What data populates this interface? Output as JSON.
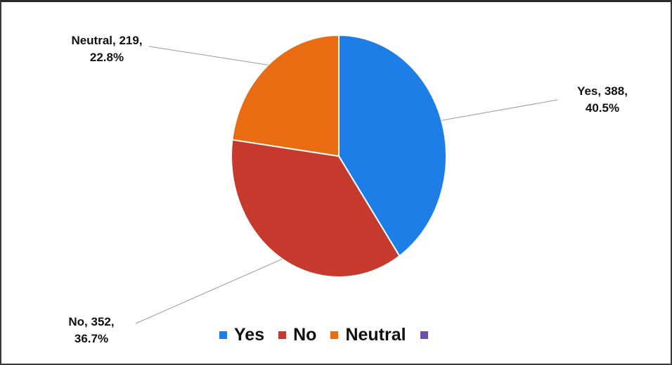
{
  "chart_data": {
    "type": "pie",
    "title": "",
    "slices": [
      {
        "label": "Yes",
        "value": 388,
        "percent": "40.5%",
        "color": "#1e7ee8"
      },
      {
        "label": "No",
        "value": 352,
        "percent": "36.7%",
        "color": "#c63a2e"
      },
      {
        "label": "Neutral",
        "value": 219,
        "percent": "22.8%",
        "color": "#ea6c12"
      }
    ],
    "data_labels": [
      {
        "line1": "Yes, 388,",
        "line2": "40.5%"
      },
      {
        "line1": "No, 352,",
        "line2": "36.7%"
      },
      {
        "line1": "Neutral, 219,",
        "line2": "22.8%"
      }
    ],
    "legend": {
      "placement": "bottom",
      "items": [
        {
          "label": "Yes",
          "color": "#1e7ee8"
        },
        {
          "label": "No",
          "color": "#c63a2e"
        },
        {
          "label": "Neutral",
          "color": "#ea6c12"
        },
        {
          "label": "",
          "color": "#6a4fb0"
        }
      ]
    },
    "leader_line_color": "#9a9a9a"
  }
}
